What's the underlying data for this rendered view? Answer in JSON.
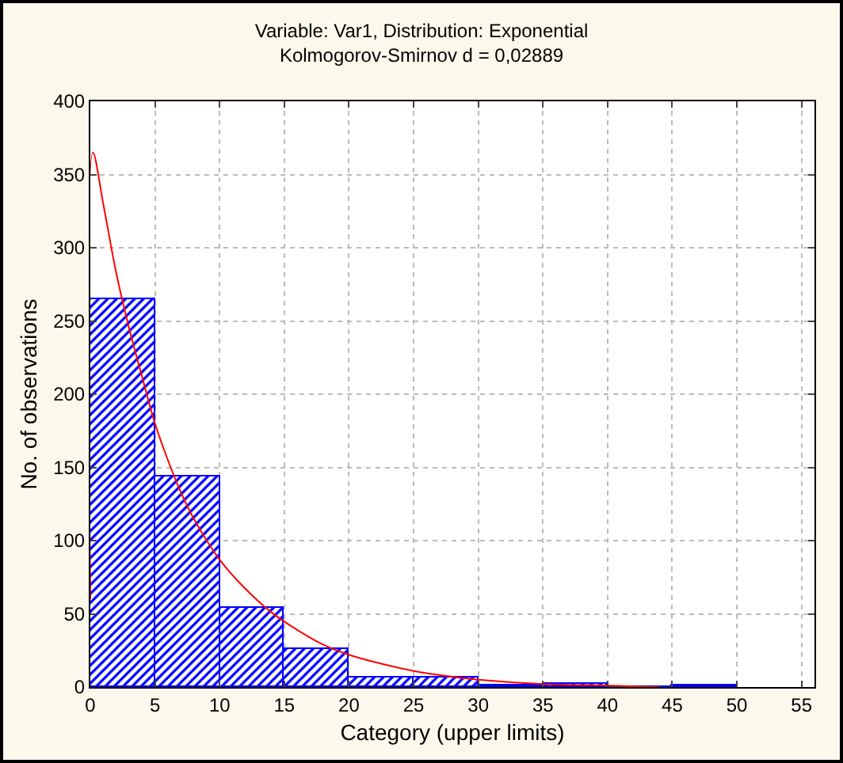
{
  "chart_data": {
    "type": "histogram",
    "title": "Variable: Var1, Distribution: Exponential",
    "subtitle": "Kolmogorov-Smirnov d = 0,02889",
    "xlabel": "Category (upper limits)",
    "ylabel": "No. of observations",
    "bins": [
      0,
      5,
      10,
      15,
      20,
      25,
      30,
      35,
      40,
      45,
      50
    ],
    "series": [
      {
        "color": "#0000ff",
        "values": [
          265,
          144,
          54,
          26,
          7,
          7,
          1,
          2,
          0,
          1
        ]
      },
      {
        "type": "line",
        "color": "#ff0000",
        "x": [
          0,
          0.2,
          1,
          2,
          3,
          4,
          5,
          6,
          7,
          8,
          10,
          12,
          14,
          16,
          18,
          20,
          22,
          25,
          28,
          30,
          35,
          40,
          44
        ],
        "values": [
          60,
          365,
          330,
          283,
          245,
          212,
          180,
          155,
          133,
          115,
          87,
          67,
          51,
          39,
          29,
          22,
          17,
          11,
          7,
          5,
          2,
          1,
          0
        ]
      }
    ],
    "xlim": [
      0,
      56
    ],
    "xticks": [
      0,
      5,
      10,
      15,
      20,
      25,
      30,
      35,
      40,
      45,
      50,
      55
    ],
    "ylim": [
      0,
      400
    ],
    "yticks": [
      0,
      50,
      100,
      150,
      200,
      250,
      300,
      350,
      400
    ],
    "grid": true
  }
}
